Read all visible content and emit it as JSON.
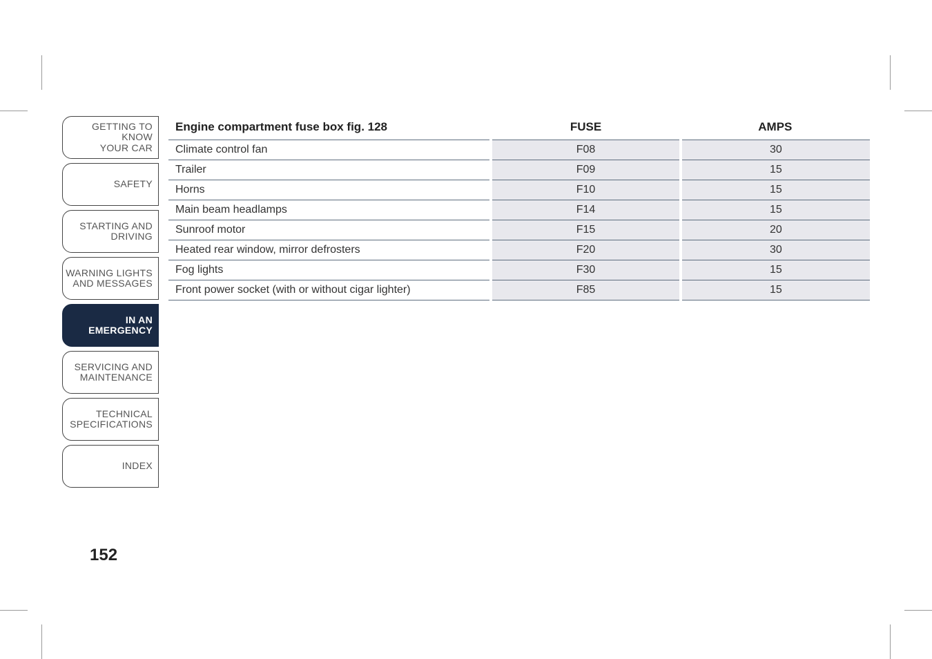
{
  "tabs": [
    {
      "line1": "GETTING TO KNOW",
      "line2": "YOUR CAR",
      "active": false
    },
    {
      "line1": "",
      "line2": "SAFETY",
      "active": false
    },
    {
      "line1": "STARTING AND",
      "line2": "DRIVING",
      "active": false
    },
    {
      "line1": "WARNING LIGHTS",
      "line2": "AND MESSAGES",
      "active": false
    },
    {
      "line1": "IN AN",
      "line2": "EMERGENCY",
      "active": true
    },
    {
      "line1": "SERVICING AND",
      "line2": "MAINTENANCE",
      "active": false
    },
    {
      "line1": "TECHNICAL",
      "line2": "SPECIFICATIONS",
      "active": false
    },
    {
      "line1": "",
      "line2": "INDEX",
      "active": false
    }
  ],
  "table": {
    "header": {
      "desc": "Engine compartment fuse box fig. 128",
      "fuse": "FUSE",
      "amps": "AMPS"
    },
    "rows": [
      {
        "desc": "Climate control fan",
        "fuse": "F08",
        "amps": "30"
      },
      {
        "desc": "Trailer",
        "fuse": "F09",
        "amps": "15"
      },
      {
        "desc": "Horns",
        "fuse": "F10",
        "amps": "15"
      },
      {
        "desc": "Main beam headlamps",
        "fuse": "F14",
        "amps": "15"
      },
      {
        "desc": "Sunroof motor",
        "fuse": "F15",
        "amps": "20"
      },
      {
        "desc": "Heated rear window, mirror defrosters",
        "fuse": "F20",
        "amps": "30"
      },
      {
        "desc": "Fog lights",
        "fuse": "F30",
        "amps": "15"
      },
      {
        "desc": "Front power socket (with or without cigar lighter)",
        "fuse": "F85",
        "amps": "15"
      }
    ],
    "styling": {
      "header_fontsize": 17,
      "cell_fontsize": 16,
      "border_color": "#5d6d7e",
      "shaded_bg": "#e8e8ed",
      "col_widths_pct": [
        46,
        27,
        27
      ],
      "gutter_color": "#ffffff"
    }
  },
  "page_number": "152",
  "colors": {
    "active_tab_bg": "#1a2a44",
    "active_tab_text": "#ffffff",
    "inactive_tab_text": "#555555",
    "tab_border": "#444444",
    "page_bg": "#ffffff"
  }
}
